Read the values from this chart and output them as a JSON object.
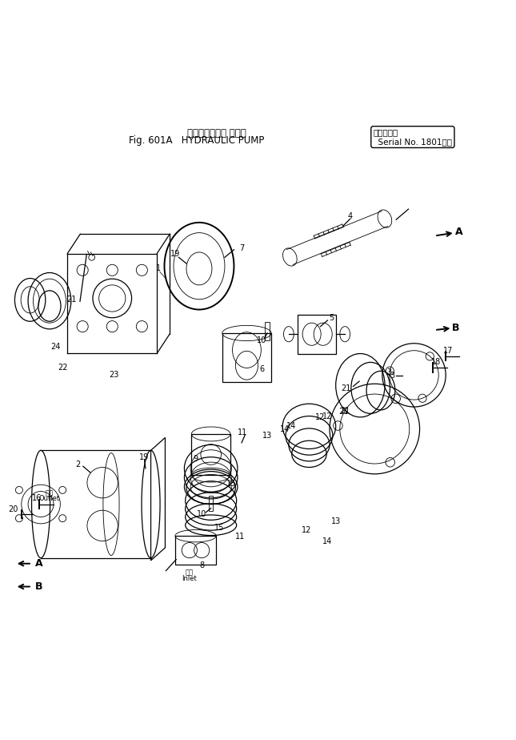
{
  "title_line1": "ハイドロリック ポンプ",
  "title_line2": "Fig. 601A   HYDRAULIC PUMP",
  "title_serial": "適用号機\nSerial No. 1801～",
  "bg_color": "#ffffff",
  "line_color": "#000000",
  "fig_width": 6.45,
  "fig_height": 9.24,
  "dpi": 100
}
